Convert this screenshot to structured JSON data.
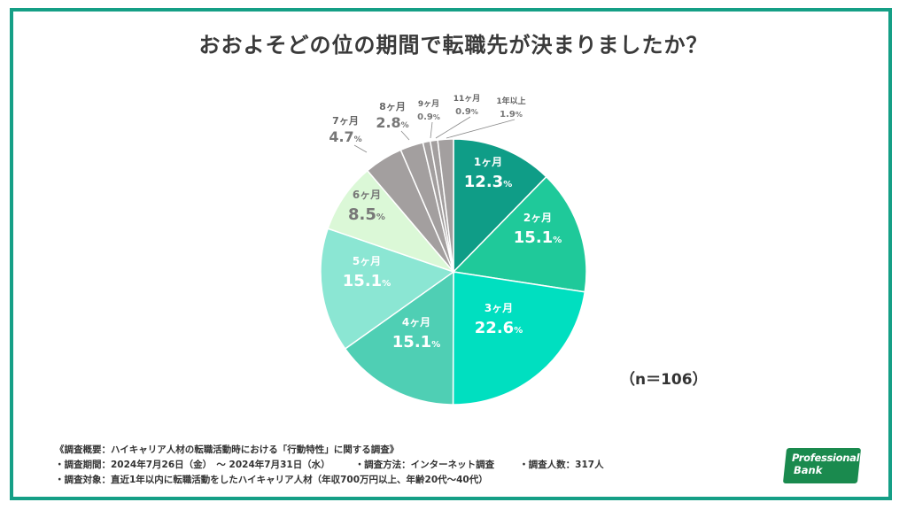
{
  "title": "おおよそどの位の期間で転職先が決まりましたか？",
  "n_label": "（n＝106）",
  "notes": {
    "line1": "《調査概要：ハイキャリア人材の転職活動時における「行動特性」に関する調査》",
    "line2a": "・調査期間：2024年7月26日（金）　～ 2024年7月31日（水）",
    "line2b": "・調査方法：インターネット調査",
    "line2c": "・調査人数：317人",
    "line3": "・調査対象：直近1年以内に転職活動をしたハイキャリア人材（年収700万円以上、年齢20代～40代）"
  },
  "logo": {
    "line1": "Professional",
    "line2": "Bank"
  },
  "colors": {
    "frame": "#159f86",
    "logo": "#1a8a4e"
  },
  "chart_data": {
    "type": "pie",
    "title": "おおよそどの位の期間で転職先が決まりましたか？",
    "unit": "%",
    "start": "12 o'clock, clockwise",
    "slices": [
      {
        "label": "1ヶ月",
        "value": 12.3,
        "color": "#0f9d87"
      },
      {
        "label": "2ヶ月",
        "value": 15.1,
        "color": "#1fc99a"
      },
      {
        "label": "3ヶ月",
        "value": 22.6,
        "color": "#00dfc0"
      },
      {
        "label": "4ヶ月",
        "value": 15.1,
        "color": "#4fcfb4"
      },
      {
        "label": "5ヶ月",
        "value": 15.1,
        "color": "#8be6d3"
      },
      {
        "label": "6ヶ月",
        "value": 8.5,
        "color": "#dbf8d7"
      },
      {
        "label": "7ヶ月",
        "value": 4.7,
        "color": "#a39f9f"
      },
      {
        "label": "8ヶ月",
        "value": 2.8,
        "color": "#a39f9f"
      },
      {
        "label": "9ヶ月",
        "value": 0.9,
        "color": "#a39f9f"
      },
      {
        "label": "11ヶ月",
        "value": 0.9,
        "color": "#a39f9f"
      },
      {
        "label": "1年以上",
        "value": 1.9,
        "color": "#a39f9f"
      }
    ]
  }
}
